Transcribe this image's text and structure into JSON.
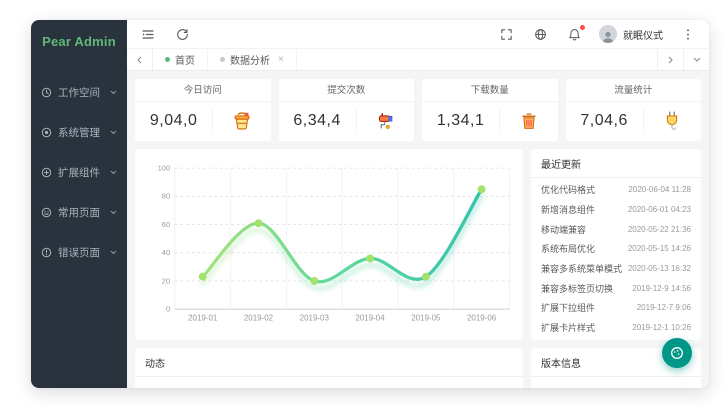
{
  "colors": {
    "accent": "#5fb878",
    "sidebar_bg": "#28333e",
    "fab": "#009688",
    "badge": "#ff4d4f"
  },
  "brand": {
    "name": "Pear Admin"
  },
  "sidebar": {
    "items": [
      {
        "label": "工作空间",
        "icon": "workspace-icon"
      },
      {
        "label": "系统管理",
        "icon": "system-icon"
      },
      {
        "label": "扩展组件",
        "icon": "extension-icon"
      },
      {
        "label": "常用页面",
        "icon": "pages-icon"
      },
      {
        "label": "错误页面",
        "icon": "error-icon"
      }
    ]
  },
  "header": {
    "user_name": "就眠仪式",
    "icons": [
      "collapse-menu-icon",
      "refresh-icon",
      "fullscreen-icon",
      "globe-icon",
      "bell-icon",
      "more-icon"
    ]
  },
  "tabs": {
    "items": [
      {
        "label": "首页",
        "active": true
      },
      {
        "label": "数据分析",
        "active": false,
        "close": "×"
      }
    ]
  },
  "stats": {
    "items": [
      {
        "title": "今日访问",
        "value": "9,04,0",
        "icon": "paint-bucket-icon"
      },
      {
        "title": "提交次数",
        "value": "6,34,4",
        "icon": "paint-roller-icon"
      },
      {
        "title": "下载数量",
        "value": "1,34,1",
        "icon": "trash-icon"
      },
      {
        "title": "流量统计",
        "value": "7,04,6",
        "icon": "power-plug-icon"
      }
    ]
  },
  "chart_data": {
    "type": "line",
    "x": [
      "2019-01",
      "2019-02",
      "2019-03",
      "2019-04",
      "2019-05",
      "2019-06"
    ],
    "values": [
      23,
      61,
      20,
      36,
      23,
      85
    ],
    "ylim": [
      0,
      100
    ],
    "yticks": [
      0,
      20,
      40,
      60,
      80,
      100
    ],
    "smooth": true,
    "grid": true,
    "line_gradient": [
      "#a4e37d",
      "#5ed89f",
      "#34c3ab"
    ],
    "point_color": "#a3e36b",
    "glow": true
  },
  "updates": {
    "title": "最近更新",
    "items": [
      {
        "label": "优化代码格式",
        "date": "2020-06-04 11:28"
      },
      {
        "label": "新增消息组件",
        "date": "2020-06-01 04:23"
      },
      {
        "label": "移动端兼容",
        "date": "2020-05-22 21:36"
      },
      {
        "label": "系统布局优化",
        "date": "2020-05-15 14:26"
      },
      {
        "label": "兼容多系统菜单模式",
        "date": "2020-05-13 16:32"
      },
      {
        "label": "兼容多标签页切换",
        "date": "2019-12-9 14:56"
      },
      {
        "label": "扩展下拉组件",
        "date": "2019-12-7 9:06"
      },
      {
        "label": "扩展卡片样式",
        "date": "2019-12-1 10:26"
      }
    ]
  },
  "footer": {
    "activity_title": "动态",
    "version_title": "版本信息"
  }
}
